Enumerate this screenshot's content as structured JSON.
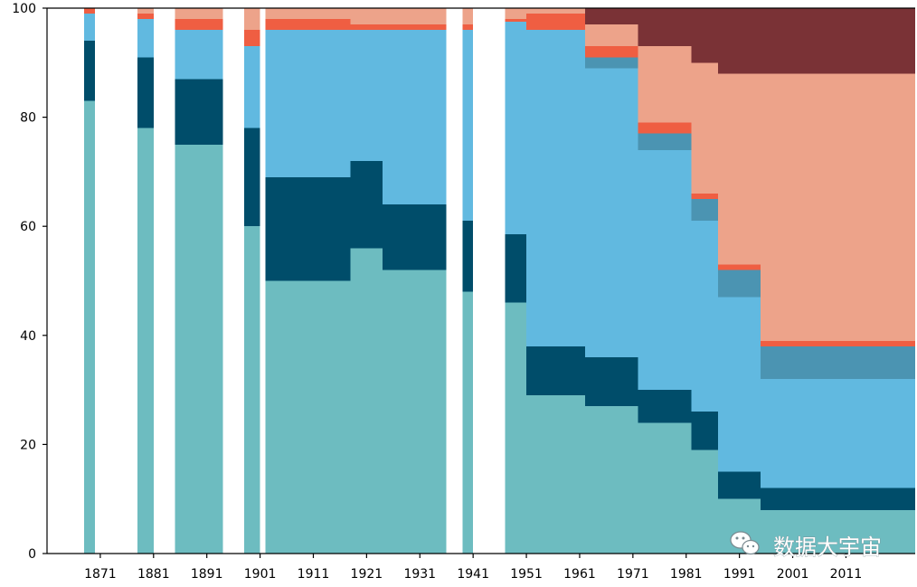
{
  "chart_data": {
    "type": "area",
    "title": "",
    "xlabel": "",
    "ylabel": "",
    "xlim": [
      1861,
      2024
    ],
    "ylim": [
      0,
      100
    ],
    "x_ticks": [
      "1871",
      "1881",
      "1891",
      "1901",
      "1911",
      "1921",
      "1931",
      "1941",
      "1951",
      "1961",
      "1971",
      "1981",
      "1991",
      "2001",
      "2011"
    ],
    "y_ticks": [
      "0",
      "20",
      "40",
      "60",
      "80",
      "100"
    ],
    "grid": false,
    "legend": "none",
    "series_order": [
      "teal",
      "navy",
      "sky",
      "slate",
      "red",
      "salmon",
      "maroon"
    ],
    "colors": {
      "teal": "#6dbcc0",
      "navy": "#004d6a",
      "sky": "#61b9e0",
      "slate": "#4b94b2",
      "red": "#ef5e42",
      "salmon": "#eda38a",
      "maroon": "#7a3236"
    },
    "segments": [
      {
        "x0": 1868,
        "x1": 1870,
        "values": {
          "teal": 83,
          "navy": 11,
          "sky": 5,
          "slate": 0,
          "red": 1,
          "salmon": 0,
          "maroon": 0
        }
      },
      {
        "x0": 1878,
        "x1": 1881,
        "values": {
          "teal": 78,
          "navy": 13,
          "sky": 7,
          "slate": 0,
          "red": 1,
          "salmon": 1,
          "maroon": 0
        }
      },
      {
        "x0": 1885,
        "x1": 1894,
        "values": {
          "teal": 75,
          "navy": 12,
          "sky": 9,
          "slate": 0,
          "red": 2,
          "salmon": 2,
          "maroon": 0
        }
      },
      {
        "x0": 1898,
        "x1": 1901,
        "values": {
          "teal": 60,
          "navy": 18,
          "sky": 15,
          "slate": 0,
          "red": 3,
          "salmon": 4,
          "maroon": 0
        }
      },
      {
        "x0": 1902,
        "x1": 1918,
        "values": {
          "teal": 50,
          "navy": 19,
          "sky": 27,
          "slate": 0,
          "red": 2,
          "salmon": 2,
          "maroon": 0
        }
      },
      {
        "x0": 1918,
        "x1": 1924,
        "values": {
          "teal": 56,
          "navy": 16,
          "sky": 24,
          "slate": 0,
          "red": 1,
          "salmon": 3,
          "maroon": 0
        }
      },
      {
        "x0": 1924,
        "x1": 1936,
        "values": {
          "teal": 52,
          "navy": 12,
          "sky": 32,
          "slate": 0,
          "red": 1,
          "salmon": 3,
          "maroon": 0
        }
      },
      {
        "x0": 1939,
        "x1": 1941,
        "values": {
          "teal": 48,
          "navy": 13,
          "sky": 35,
          "slate": 0,
          "red": 1,
          "salmon": 3,
          "maroon": 0
        }
      },
      {
        "x0": 1947,
        "x1": 1951,
        "values": {
          "teal": 46,
          "navy": 12.5,
          "sky": 39,
          "slate": 0,
          "red": 0.5,
          "salmon": 2,
          "maroon": 0
        }
      },
      {
        "x0": 1951,
        "x1": 1962,
        "values": {
          "teal": 29,
          "navy": 9,
          "sky": 58,
          "slate": 0,
          "red": 3,
          "salmon": 1,
          "maroon": 0
        }
      },
      {
        "x0": 1962,
        "x1": 1972,
        "values": {
          "teal": 27,
          "navy": 9,
          "sky": 53,
          "slate": 2,
          "red": 2,
          "salmon": 4,
          "maroon": 3
        }
      },
      {
        "x0": 1972,
        "x1": 1982,
        "values": {
          "teal": 24,
          "navy": 6,
          "sky": 44,
          "slate": 3,
          "red": 2,
          "salmon": 14,
          "maroon": 7
        }
      },
      {
        "x0": 1982,
        "x1": 1987,
        "values": {
          "teal": 19,
          "navy": 7,
          "sky": 35,
          "slate": 4,
          "red": 1,
          "salmon": 24,
          "maroon": 10
        }
      },
      {
        "x0": 1987,
        "x1": 1995,
        "values": {
          "teal": 10,
          "navy": 5,
          "sky": 32,
          "slate": 5,
          "red": 1,
          "salmon": 35,
          "maroon": 12
        }
      },
      {
        "x0": 1995,
        "x1": 2024,
        "values": {
          "teal": 8,
          "navy": 4,
          "sky": 20,
          "slate": 6,
          "red": 1,
          "salmon": 49,
          "maroon": 12
        }
      }
    ]
  },
  "watermark": {
    "icon": "wechat-icon",
    "text": "数据大宇宙"
  }
}
